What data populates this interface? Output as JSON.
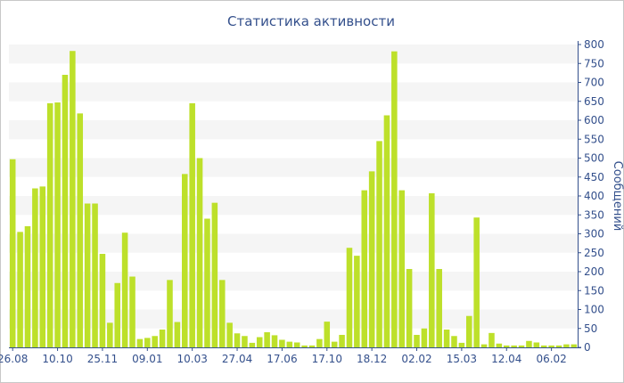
{
  "chart_data": {
    "type": "bar",
    "title": "Статистика активности",
    "xlabel": "",
    "ylabel": "Сообщений",
    "ylim": [
      0,
      800
    ],
    "yticks": [
      0,
      50,
      100,
      150,
      200,
      250,
      300,
      350,
      400,
      450,
      500,
      550,
      600,
      650,
      700,
      750,
      800
    ],
    "y_axis_side": "right",
    "x_tick_labels": [
      "26.08",
      "10.10",
      "25.11",
      "09.01",
      "10.03",
      "27.04",
      "17.06",
      "17.10",
      "18.12",
      "02.02",
      "15.03",
      "12.04",
      "06.02"
    ],
    "x_tick_bar_index": [
      0,
      6,
      12,
      18,
      24,
      30,
      36,
      42,
      48,
      54,
      60,
      66,
      72
    ],
    "grid": "horizontal bands",
    "bar_color": "#bde02a",
    "band_color": "#f5f5f5",
    "values": [
      497,
      305,
      320,
      420,
      425,
      645,
      647,
      720,
      783,
      618,
      380,
      380,
      247,
      65,
      170,
      303,
      187,
      22,
      25,
      30,
      47,
      178,
      67,
      458,
      645,
      500,
      340,
      382,
      178,
      65,
      37,
      30,
      12,
      27,
      40,
      32,
      20,
      15,
      13,
      5,
      5,
      22,
      68,
      15,
      33,
      263,
      242,
      415,
      465,
      545,
      613,
      782,
      415,
      207,
      33,
      50,
      407,
      207,
      47,
      30,
      12,
      83,
      343,
      8,
      38,
      10,
      5,
      5,
      5,
      17,
      13,
      5,
      5,
      5,
      8,
      8
    ]
  }
}
